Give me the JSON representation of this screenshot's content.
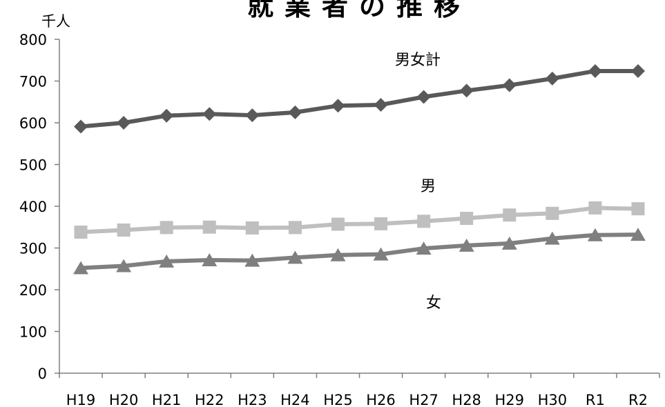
{
  "chart_data": {
    "type": "line",
    "title": "就業者の推移",
    "unit": "千人",
    "categories": [
      "H19",
      "H20",
      "H21",
      "H22",
      "H23",
      "H24",
      "H25",
      "H26",
      "H27",
      "H28",
      "H29",
      "H30",
      "R1",
      "R2"
    ],
    "ylim": [
      0,
      800
    ],
    "yticks": [
      0,
      100,
      200,
      300,
      400,
      500,
      600,
      700,
      800
    ],
    "grid": false,
    "legend": "inline labels",
    "series": [
      {
        "name": "男女計",
        "color": "#595959",
        "marker": "diamond",
        "values": [
          591,
          600,
          617,
          621,
          618,
          625,
          641,
          643,
          662,
          677,
          690,
          706,
          724,
          724
        ]
      },
      {
        "name": "男",
        "color": "#bfbfbf",
        "marker": "square",
        "values": [
          338,
          343,
          349,
          350,
          348,
          349,
          357,
          358,
          364,
          371,
          379,
          383,
          396,
          394
        ]
      },
      {
        "name": "女",
        "color": "#7f7f7f",
        "marker": "triangle",
        "values": [
          252,
          257,
          268,
          271,
          270,
          277,
          283,
          285,
          299,
          306,
          311,
          323,
          331,
          332
        ]
      }
    ]
  }
}
